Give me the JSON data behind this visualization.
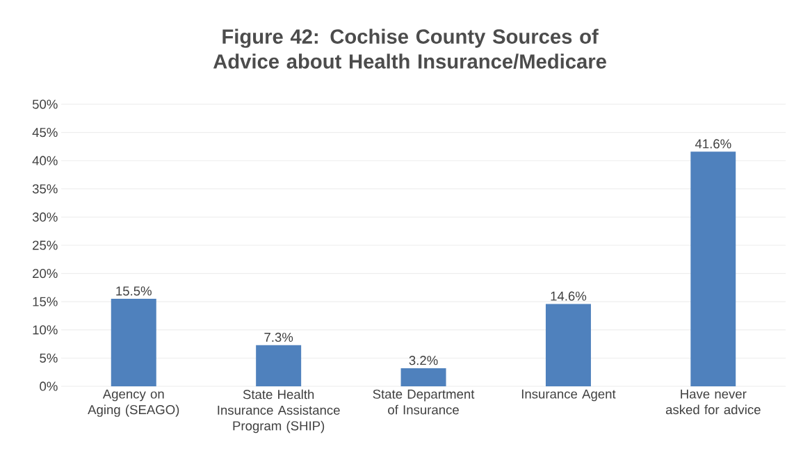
{
  "chart_data": {
    "type": "bar",
    "title": "Figure 42: Cochise County Sources of Advice about Health Insurance/Medicare",
    "categories": [
      "Agency on Aging (SEAGO)",
      "State Health Insurance Assistance Program (SHIP)",
      "State Department of Insurance",
      "Insurance Agent",
      "Have never asked for advice"
    ],
    "values": [
      15.5,
      7.3,
      3.2,
      14.6,
      41.6
    ],
    "value_labels": [
      "15.5%",
      "7.3%",
      "3.2%",
      "14.6%",
      "41.6%"
    ],
    "color": "#4f81bd",
    "ylim": [
      0,
      50
    ],
    "yticks": [
      {
        "value": 0,
        "label": "0%"
      },
      {
        "value": 5,
        "label": "5%"
      },
      {
        "value": 10,
        "label": "10%"
      },
      {
        "value": 15,
        "label": "15%"
      },
      {
        "value": 20,
        "label": "20%"
      },
      {
        "value": 25,
        "label": "25%"
      },
      {
        "value": 30,
        "label": "30%"
      },
      {
        "value": 35,
        "label": "35%"
      },
      {
        "value": 40,
        "label": "40%"
      },
      {
        "value": 45,
        "label": "45%"
      },
      {
        "value": 50,
        "label": "50%"
      }
    ],
    "grid": "y"
  }
}
